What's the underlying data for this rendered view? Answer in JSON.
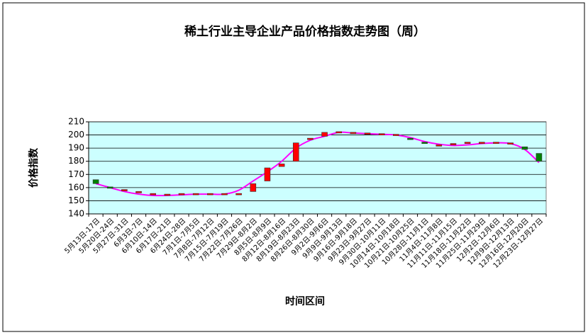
{
  "chart_data": {
    "type": "candlestick-line",
    "title": "稀土行业主导企业产品价格指数走势图（周）",
    "x_label": "时间区间",
    "y_label": "价格指数",
    "categories": [
      "5月13日-17日",
      "5月20日-24日",
      "5月27日-31日",
      "6月3日-7日",
      "6月10日-14日",
      "6月17日-21日",
      "6月24日-28日",
      "7月1日-7月5日",
      "7月8日-7月12日",
      "7月15日-7月19日",
      "7月22日-7月26日",
      "7月29日-8月2日",
      "8月5日-8月9日",
      "8月12日-8月16日",
      "8月19日-8月23日",
      "8月26日-8月30日",
      "9月2日-9月6日",
      "9月9日-9月13日",
      "9月16日-9月18日",
      "9月23日-9月27日",
      "9月30日-10月11日",
      "10月14日-10月18日",
      "10月21日-10月25日",
      "10月28日-11月1日",
      "11月4日-11月8日",
      "11月11日-11月15日",
      "11月18日-11月22日",
      "11月25日-11月29日",
      "12月2日-12月6日",
      "12月9日-12月13日",
      "12月16日-12月20日",
      "12月23日-12月27日"
    ],
    "open": [
      166,
      160,
      158,
      156.5,
      155,
      154.5,
      154.5,
      155,
      155,
      155,
      155,
      157,
      165,
      176,
      180,
      196,
      199,
      202,
      201.5,
      201,
      200.5,
      200,
      197,
      194,
      192,
      192,
      193,
      194,
      194,
      193.5,
      191,
      186
    ],
    "close": [
      163,
      159.5,
      158,
      156.5,
      155,
      154.5,
      155,
      155,
      155,
      155,
      155,
      163,
      175,
      178,
      194,
      197,
      202,
      202,
      201.5,
      201,
      200.5,
      200,
      196,
      193,
      192,
      193,
      194,
      194,
      194,
      193.5,
      189,
      180
    ],
    "up_color": "#ff0000",
    "down_color": "#008000",
    "line": {
      "color": "#ff00ff",
      "values": [
        163,
        160,
        157,
        155,
        154,
        154,
        154.5,
        155,
        155,
        155,
        158,
        165,
        172,
        180,
        190,
        196,
        199,
        202,
        201.5,
        201,
        200.5,
        200,
        198,
        195,
        193,
        192,
        192.5,
        193.5,
        194,
        193.5,
        189,
        179
      ]
    },
    "ylim": [
      140,
      210
    ],
    "yticks": [
      140,
      150,
      160,
      170,
      180,
      190,
      200,
      210
    ],
    "grid": true,
    "plot_background": "#ccffff"
  }
}
